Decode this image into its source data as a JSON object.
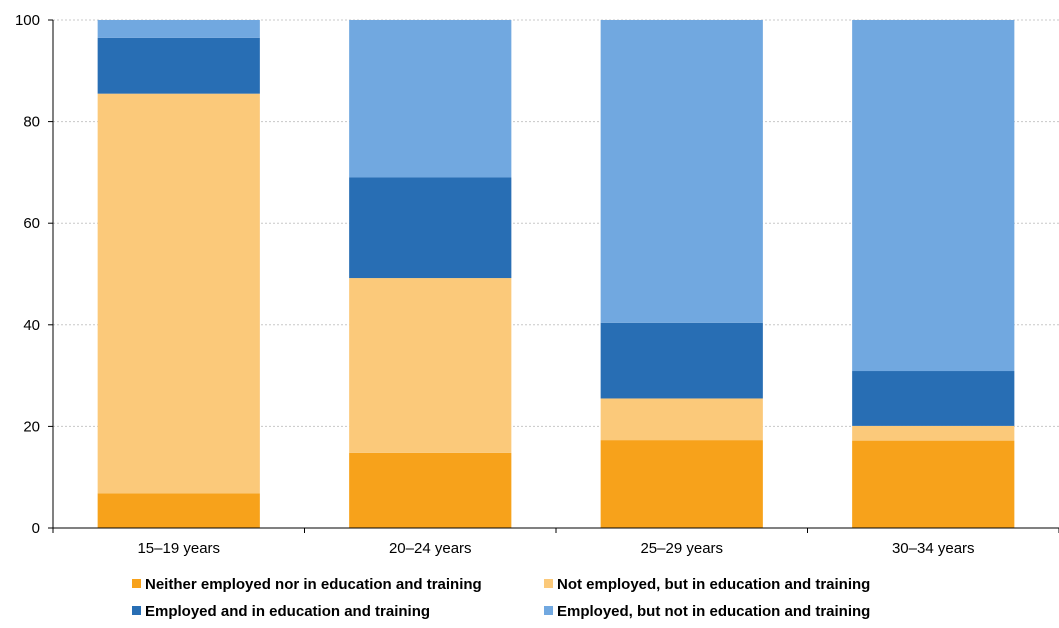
{
  "chart_data": {
    "type": "bar",
    "stacked": true,
    "categories": [
      "15–19 years",
      "20–24 years",
      "25–29 years",
      "30–34 years"
    ],
    "series": [
      {
        "name": "Neither employed nor in education and training",
        "color": "#F7A21B",
        "values": [
          6.8,
          14.8,
          17.3,
          17.2
        ]
      },
      {
        "name": "Not employed, but in education and training",
        "color": "#FBC97A",
        "values": [
          78.7,
          34.4,
          8.2,
          2.9
        ]
      },
      {
        "name": "Employed and in education and training",
        "color": "#286EB4",
        "values": [
          11.0,
          19.8,
          14.9,
          10.8
        ]
      },
      {
        "name": "Employed, but not in education and training",
        "color": "#71A8E0",
        "values": [
          3.5,
          31.0,
          59.6,
          69.1
        ]
      }
    ],
    "yticks": [
      0,
      20,
      40,
      60,
      80,
      100
    ],
    "ylim": [
      0,
      100
    ],
    "grid": true,
    "legend_position": "bottom"
  }
}
